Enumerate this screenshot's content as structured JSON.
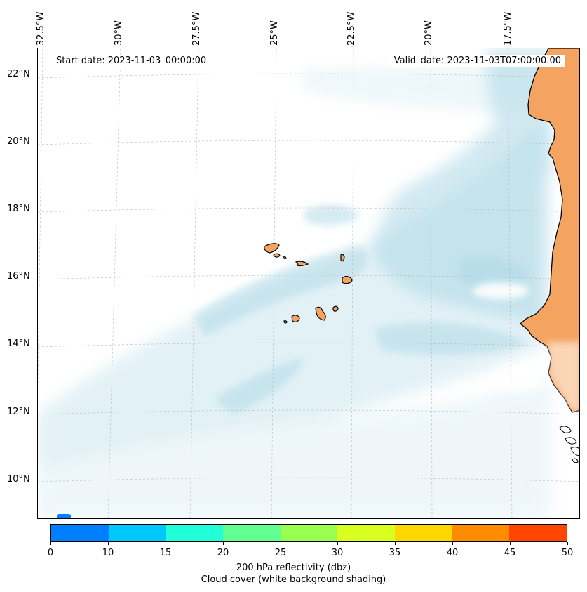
{
  "map": {
    "start_date": "Start date: 2023-11-03_00:00:00",
    "valid_date": "Valid_date: 2023-11-03T07:00:00.00",
    "longitude_labels": [
      "32.5°W",
      "30°W",
      "27.5°W",
      "25°W",
      "22.5°W",
      "20°W",
      "17.5°W"
    ],
    "latitude_labels": [
      "22°N",
      "20°N",
      "18°N",
      "16°N",
      "14°N",
      "12°N",
      "10°N"
    ],
    "land_color": "#f4a460",
    "cloud_color": "#add8e6",
    "islands": [
      "Santo Antão",
      "São Vicente",
      "São Nicolau",
      "Sal",
      "Boa Vista",
      "Santiago",
      "Fogo",
      "Brava",
      "Maio"
    ]
  },
  "colorbar": {
    "ticks": [
      "0",
      "10",
      "15",
      "20",
      "25",
      "30",
      "35",
      "40",
      "45",
      "50"
    ],
    "colors": [
      "#0080ff",
      "#00c8ff",
      "#20ffd8",
      "#60ff90",
      "#98ff50",
      "#d8ff20",
      "#ffd700",
      "#ff8c00",
      "#ff4500"
    ],
    "label_line1": "200 hPa reflectivity (dbz)",
    "label_line2": "Cloud cover (white background shading)"
  }
}
